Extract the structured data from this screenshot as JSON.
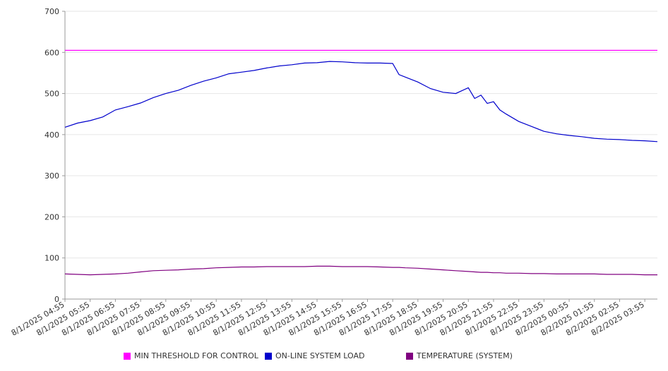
{
  "chart_data": {
    "type": "line",
    "title": "",
    "xlabel": "",
    "ylabel": "",
    "ylim": [
      0,
      700
    ],
    "yticks": [
      0,
      100,
      200,
      300,
      400,
      500,
      600,
      700
    ],
    "grid": true,
    "legend_position": "bottom",
    "x_tick_labels": [
      "8/1/2025 04:55",
      "8/1/2025 05:55",
      "8/1/2025 06:55",
      "8/1/2025 07:55",
      "8/1/2025 08:55",
      "8/1/2025 09:55",
      "8/1/2025 10:55",
      "8/1/2025 11:55",
      "8/1/2025 12:55",
      "8/1/2025 13:55",
      "8/1/2025 14:55",
      "8/1/2025 15:55",
      "8/1/2025 16:55",
      "8/1/2025 17:55",
      "8/1/2025 18:55",
      "8/1/2025 19:55",
      "8/1/2025 20:55",
      "8/1/2025 21:55",
      "8/1/2025 22:55",
      "8/1/2025 23:55",
      "8/2/2025 00:55",
      "8/2/2025 01:55",
      "8/2/2025 02:55",
      "8/2/2025 03:55"
    ],
    "x": [
      "8/1/2025 04:55",
      "8/1/2025 05:25",
      "8/1/2025 05:55",
      "8/1/2025 06:25",
      "8/1/2025 06:55",
      "8/1/2025 07:25",
      "8/1/2025 07:55",
      "8/1/2025 08:25",
      "8/1/2025 08:55",
      "8/1/2025 09:25",
      "8/1/2025 09:55",
      "8/1/2025 10:25",
      "8/1/2025 10:55",
      "8/1/2025 11:25",
      "8/1/2025 11:55",
      "8/1/2025 12:25",
      "8/1/2025 12:55",
      "8/1/2025 13:25",
      "8/1/2025 13:55",
      "8/1/2025 14:25",
      "8/1/2025 14:55",
      "8/1/2025 15:25",
      "8/1/2025 15:55",
      "8/1/2025 16:25",
      "8/1/2025 16:55",
      "8/1/2025 17:25",
      "8/1/2025 17:55",
      "8/1/2025 18:10",
      "8/1/2025 18:25",
      "8/1/2025 18:55",
      "8/1/2025 19:25",
      "8/1/2025 19:55",
      "8/1/2025 20:25",
      "8/1/2025 20:55",
      "8/1/2025 21:10",
      "8/1/2025 21:25",
      "8/1/2025 21:40",
      "8/1/2025 21:55",
      "8/1/2025 22:10",
      "8/1/2025 22:25",
      "8/1/2025 22:55",
      "8/1/2025 23:25",
      "8/1/2025 23:55",
      "8/2/2025 00:25",
      "8/2/2025 00:55",
      "8/2/2025 01:25",
      "8/2/2025 01:55",
      "8/2/2025 02:25",
      "8/2/2025 02:55",
      "8/2/2025 03:25",
      "8/2/2025 03:55",
      "8/2/2025 04:25"
    ],
    "series": [
      {
        "name": "MIN THRESHOLD FOR CONTROL",
        "color": "#ff00ff",
        "values": [
          605,
          605,
          605,
          605,
          605,
          605,
          605,
          605,
          605,
          605,
          605,
          605,
          605,
          605,
          605,
          605,
          605,
          605,
          605,
          605,
          605,
          605,
          605,
          605,
          605,
          605,
          605,
          605,
          605,
          605,
          605,
          605,
          605,
          605,
          605,
          605,
          605,
          605,
          605,
          605,
          605,
          605,
          605,
          605,
          605,
          605,
          605,
          605,
          605,
          605,
          605,
          605
        ]
      },
      {
        "name": "ON-LINE SYSTEM LOAD",
        "color": "#0000cc",
        "values": [
          418,
          428,
          434,
          443,
          460,
          468,
          477,
          490,
          500,
          508,
          520,
          530,
          538,
          548,
          552,
          556,
          562,
          567,
          570,
          574,
          575,
          578,
          577,
          575,
          574,
          574,
          573,
          546,
          540,
          528,
          512,
          503,
          500,
          514,
          488,
          496,
          476,
          480,
          460,
          450,
          432,
          420,
          408,
          402,
          398,
          395,
          391,
          389,
          388,
          386,
          385,
          383
        ]
      },
      {
        "name": "TEMPERATURE (SYSTEM)",
        "color": "#800080",
        "values": [
          61,
          60,
          59,
          60,
          61,
          63,
          66,
          69,
          70,
          71,
          73,
          74,
          76,
          77,
          78,
          78,
          79,
          79,
          79,
          79,
          80,
          80,
          79,
          79,
          79,
          78,
          77,
          77,
          76,
          75,
          73,
          71,
          69,
          67,
          66,
          65,
          65,
          64,
          64,
          63,
          63,
          62,
          62,
          61,
          61,
          61,
          61,
          60,
          60,
          60,
          59,
          59
        ]
      }
    ]
  }
}
